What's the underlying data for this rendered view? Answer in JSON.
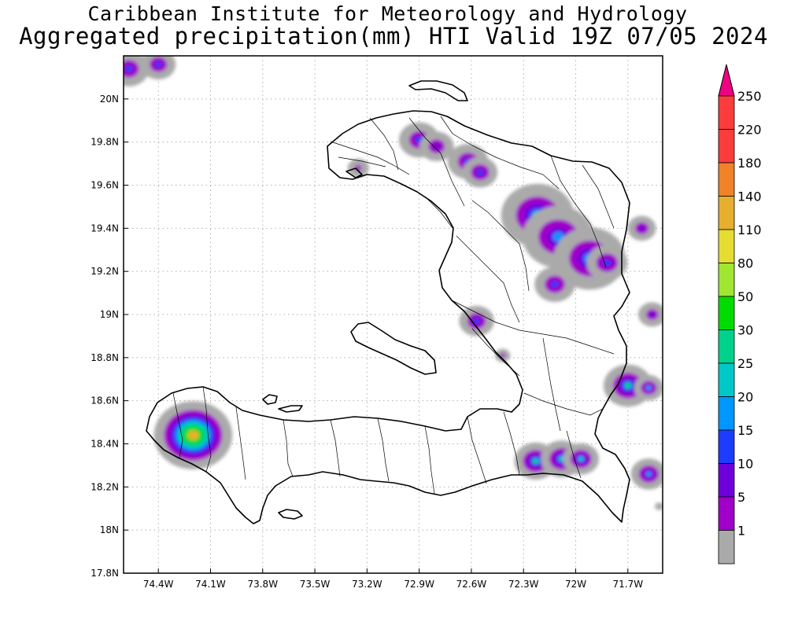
{
  "header": {
    "title": "Caribbean Institute for Meteorology and Hydrology",
    "subtitle": "Aggregated precipitation(mm) HTI Valid 19Z 07/05 2024"
  },
  "map": {
    "region": "Haiti",
    "variable": "Aggregated precipitation",
    "units": "mm",
    "lon_range": [
      -74.6,
      -71.5
    ],
    "lat_range": [
      17.8,
      20.2
    ],
    "grid": "dotted",
    "x_ticks": [
      {
        "value": -74.4,
        "label": "74.4W"
      },
      {
        "value": -74.1,
        "label": "74.1W"
      },
      {
        "value": -73.8,
        "label": "73.8W"
      },
      {
        "value": -73.5,
        "label": "73.5W"
      },
      {
        "value": -73.2,
        "label": "73.2W"
      },
      {
        "value": -72.9,
        "label": "72.9W"
      },
      {
        "value": -72.6,
        "label": "72.6W"
      },
      {
        "value": -72.3,
        "label": "72.3W"
      },
      {
        "value": -72.0,
        "label": "72W"
      },
      {
        "value": -71.7,
        "label": "71.7W"
      }
    ],
    "y_ticks": [
      {
        "value": 20.0,
        "label": "20N"
      },
      {
        "value": 19.8,
        "label": "19.8N"
      },
      {
        "value": 19.6,
        "label": "19.6N"
      },
      {
        "value": 19.4,
        "label": "19.4N"
      },
      {
        "value": 19.2,
        "label": "19.2N"
      },
      {
        "value": 19.0,
        "label": "19N"
      },
      {
        "value": 18.8,
        "label": "18.8N"
      },
      {
        "value": 18.6,
        "label": "18.6N"
      },
      {
        "value": 18.4,
        "label": "18.4N"
      },
      {
        "value": 18.2,
        "label": "18.2N"
      },
      {
        "value": 18.0,
        "label": "18N"
      },
      {
        "value": 17.8,
        "label": "17.8N"
      }
    ]
  },
  "colorbar": {
    "placement": "right",
    "levels": [
      {
        "label": "1",
        "color": "#aaaaaa"
      },
      {
        "label": "5",
        "color": "#a000c8"
      },
      {
        "label": "10",
        "color": "#6e00dc"
      },
      {
        "label": "15",
        "color": "#1e3cff"
      },
      {
        "label": "20",
        "color": "#0096ff"
      },
      {
        "label": "25",
        "color": "#00c8c8"
      },
      {
        "label": "30",
        "color": "#00d28c"
      },
      {
        "label": "50",
        "color": "#00dc00"
      },
      {
        "label": "80",
        "color": "#a0e632"
      },
      {
        "label": "110",
        "color": "#e6dc32"
      },
      {
        "label": "140",
        "color": "#e6af2d"
      },
      {
        "label": "180",
        "color": "#f08228"
      },
      {
        "label": "220",
        "color": "#fa3c3c"
      },
      {
        "label": "250",
        "color": "#f00082"
      }
    ],
    "under_color": "#ffffff",
    "over_color": "#f00082"
  },
  "precip_cells": [
    {
      "lon": -74.57,
      "lat": 20.14,
      "r": 0.07,
      "peak_mm": 16
    },
    {
      "lon": -74.4,
      "lat": 20.16,
      "r": 0.06,
      "peak_mm": 16
    },
    {
      "lon": -72.9,
      "lat": 19.81,
      "r": 0.07,
      "peak_mm": 16
    },
    {
      "lon": -72.8,
      "lat": 19.78,
      "r": 0.06,
      "peak_mm": 14
    },
    {
      "lon": -72.62,
      "lat": 19.71,
      "r": 0.07,
      "peak_mm": 16
    },
    {
      "lon": -72.55,
      "lat": 19.66,
      "r": 0.06,
      "peak_mm": 18
    },
    {
      "lon": -73.25,
      "lat": 19.68,
      "r": 0.04,
      "peak_mm": 8
    },
    {
      "lon": -72.22,
      "lat": 19.46,
      "r": 0.12,
      "peak_mm": 28
    },
    {
      "lon": -72.1,
      "lat": 19.36,
      "r": 0.12,
      "peak_mm": 22
    },
    {
      "lon": -71.92,
      "lat": 19.26,
      "r": 0.12,
      "peak_mm": 24
    },
    {
      "lon": -71.82,
      "lat": 19.24,
      "r": 0.07,
      "peak_mm": 18
    },
    {
      "lon": -72.12,
      "lat": 19.14,
      "r": 0.07,
      "peak_mm": 16
    },
    {
      "lon": -71.62,
      "lat": 19.4,
      "r": 0.05,
      "peak_mm": 14
    },
    {
      "lon": -71.56,
      "lat": 19.0,
      "r": 0.05,
      "peak_mm": 12
    },
    {
      "lon": -72.57,
      "lat": 18.97,
      "r": 0.06,
      "peak_mm": 18
    },
    {
      "lon": -72.42,
      "lat": 18.81,
      "r": 0.03,
      "peak_mm": 6
    },
    {
      "lon": -71.7,
      "lat": 18.67,
      "r": 0.08,
      "peak_mm": 30
    },
    {
      "lon": -71.58,
      "lat": 18.66,
      "r": 0.05,
      "peak_mm": 20
    },
    {
      "lon": -74.2,
      "lat": 18.44,
      "r": 0.12,
      "peak_mm": 140
    },
    {
      "lon": -72.23,
      "lat": 18.32,
      "r": 0.07,
      "peak_mm": 30
    },
    {
      "lon": -72.08,
      "lat": 18.33,
      "r": 0.07,
      "peak_mm": 28
    },
    {
      "lon": -71.97,
      "lat": 18.33,
      "r": 0.06,
      "peak_mm": 26
    },
    {
      "lon": -71.58,
      "lat": 18.26,
      "r": 0.06,
      "peak_mm": 22
    },
    {
      "lon": -71.52,
      "lat": 18.11,
      "r": 0.02,
      "peak_mm": 3
    }
  ]
}
